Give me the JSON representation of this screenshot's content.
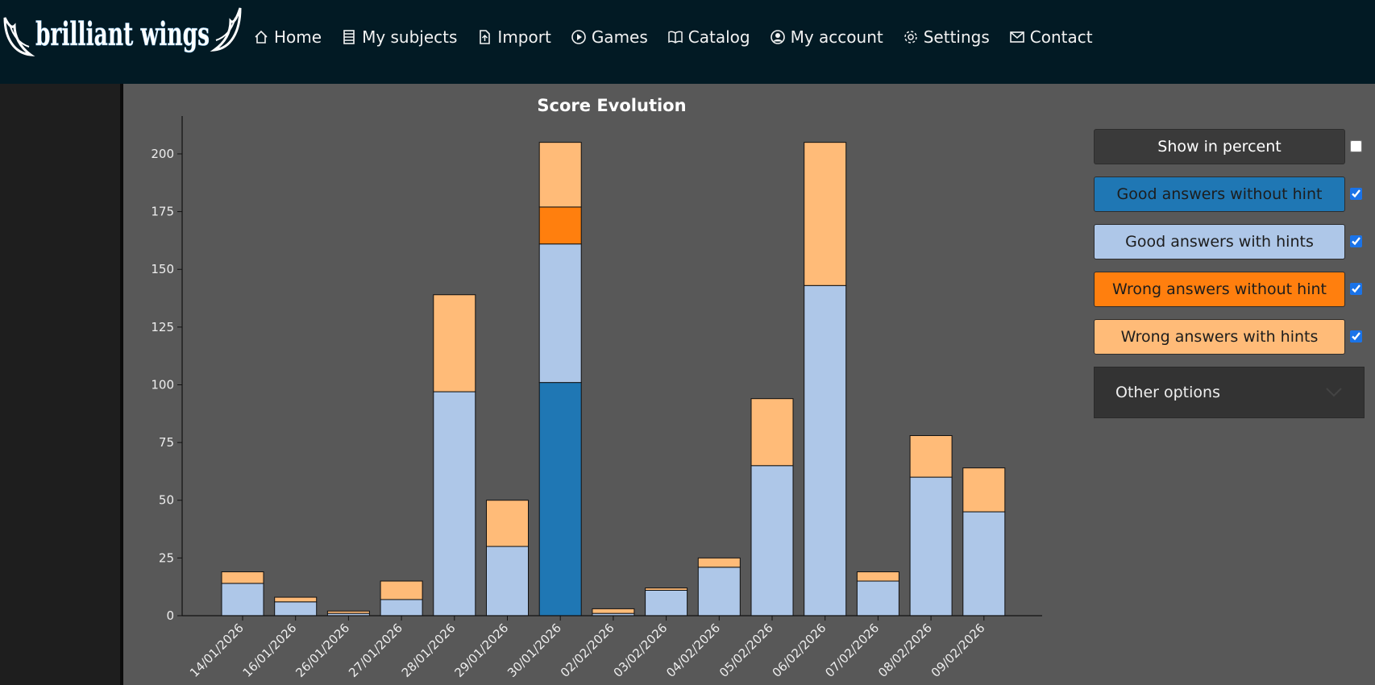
{
  "brand": {
    "logo_text": "brilliant wings"
  },
  "nav": {
    "items": [
      {
        "label": "Home",
        "icon": "home-icon"
      },
      {
        "label": "My subjects",
        "icon": "list-icon"
      },
      {
        "label": "Import",
        "icon": "file-upload-icon"
      },
      {
        "label": "Games",
        "icon": "play-circle-icon"
      },
      {
        "label": "Catalog",
        "icon": "book-icon"
      },
      {
        "label": "My account",
        "icon": "user-circle-icon"
      },
      {
        "label": "Settings",
        "icon": "gear-icon"
      },
      {
        "label": "Contact",
        "icon": "envelope-icon"
      }
    ]
  },
  "colors": {
    "topbar_bg": "#021a24",
    "page_bg": "#585858",
    "good_no_hint": "#1f77b4",
    "good_hints": "#aec7e8",
    "wrong_no_hint": "#ff7f0e",
    "wrong_hints": "#ffbb78"
  },
  "controls": {
    "show_percent": {
      "label": "Show in percent",
      "checked": false
    },
    "legend": [
      {
        "label": "Good answers without hint",
        "checked": true
      },
      {
        "label": "Good answers with hints",
        "checked": true
      },
      {
        "label": "Wrong answers without hint",
        "checked": true
      },
      {
        "label": "Wrong answers with hints",
        "checked": true
      }
    ],
    "other_options": {
      "label": "Other options",
      "icon": "chevron-down-icon"
    }
  },
  "chart_data": {
    "type": "bar",
    "stacked": true,
    "title": "Score Evolution",
    "xlabel": "",
    "ylabel": "",
    "ylim": [
      0,
      215
    ],
    "yticks": [
      0,
      25,
      50,
      75,
      100,
      125,
      150,
      175,
      200
    ],
    "categories": [
      "14/01/2026",
      "16/01/2026",
      "26/01/2026",
      "27/01/2026",
      "28/01/2026",
      "29/01/2026",
      "30/01/2026",
      "02/02/2026",
      "03/02/2026",
      "04/02/2026",
      "05/02/2026",
      "06/02/2026",
      "07/02/2026",
      "08/02/2026",
      "09/02/2026"
    ],
    "series": [
      {
        "name": "Good answers without hint",
        "values": [
          0,
          0,
          0,
          0,
          0,
          0,
          101,
          0,
          0,
          0,
          0,
          0,
          0,
          0,
          0
        ]
      },
      {
        "name": "Good answers with hints",
        "values": [
          14,
          6,
          1,
          7,
          97,
          30,
          60,
          1,
          11,
          21,
          65,
          143,
          15,
          60,
          45
        ]
      },
      {
        "name": "Wrong answers without hint",
        "values": [
          0,
          0,
          0,
          0,
          0,
          0,
          16,
          0,
          0,
          0,
          0,
          0,
          0,
          0,
          0
        ]
      },
      {
        "name": "Wrong answers with hints",
        "values": [
          5,
          2,
          1,
          8,
          42,
          20,
          28,
          2,
          1,
          4,
          29,
          62,
          4,
          18,
          19
        ]
      }
    ]
  }
}
